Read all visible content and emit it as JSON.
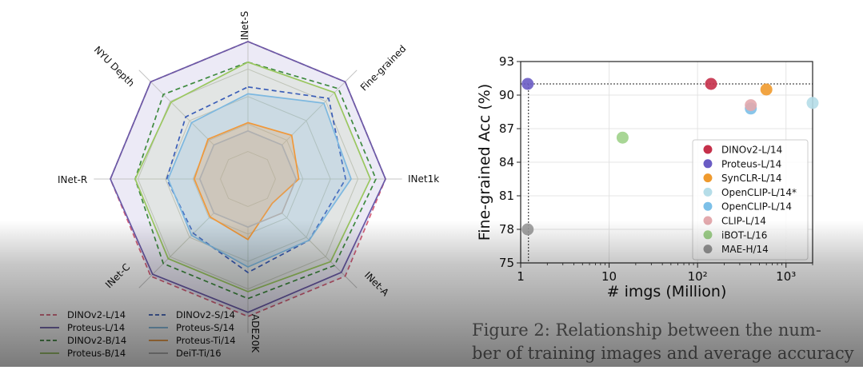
{
  "caption": "Figure 2: Relationship between the number of training images and average accuracy",
  "caption_line1": "Figure 2:  Relationship between the num-",
  "caption_line2": "ber of training images and average accuracy",
  "chart_data": [
    {
      "type": "radar",
      "axes": [
        "INet-S",
        "Fine-grained",
        "INet1k",
        "INet-A",
        "ADE20K",
        "INet-C",
        "INet-R",
        "NYU Depth"
      ],
      "radial_range": [
        0,
        1
      ],
      "grid": true,
      "legend_position": "bottom-left",
      "series": [
        {
          "name": "DINOv2-L/14",
          "color": "#d6617a",
          "style": "dashed",
          "values": [
            1.0,
            1.0,
            1.0,
            1.0,
            1.0,
            1.0,
            1.0,
            1.0
          ]
        },
        {
          "name": "Proteus-L/14",
          "color": "#6a5aa8",
          "style": "solid",
          "values": [
            1.0,
            1.0,
            1.0,
            0.96,
            0.97,
            0.98,
            1.0,
            1.0
          ]
        },
        {
          "name": "DINOv2-B/14",
          "color": "#3f8a3f",
          "style": "dashed",
          "values": [
            0.85,
            0.93,
            0.93,
            0.89,
            0.87,
            0.87,
            0.82,
            0.87
          ]
        },
        {
          "name": "Proteus-B/14",
          "color": "#9ac760",
          "style": "solid",
          "values": [
            0.85,
            0.89,
            0.89,
            0.85,
            0.82,
            0.82,
            0.82,
            0.79
          ]
        },
        {
          "name": "DINOv2-S/14",
          "color": "#3b5eb8",
          "style": "dashed",
          "values": [
            0.67,
            0.83,
            0.71,
            0.63,
            0.68,
            0.56,
            0.59,
            0.64
          ]
        },
        {
          "name": "Proteus-S/14",
          "color": "#7db8e0",
          "style": "solid",
          "values": [
            0.62,
            0.78,
            0.75,
            0.63,
            0.64,
            0.58,
            0.58,
            0.58
          ]
        },
        {
          "name": "Proteus-Ti/14",
          "color": "#f0983a",
          "style": "solid",
          "values": [
            0.41,
            0.45,
            0.37,
            0.25,
            0.44,
            0.39,
            0.39,
            0.41
          ]
        },
        {
          "name": "DeiT-Ti/16",
          "color": "#b0b0b0",
          "style": "solid",
          "values": [
            0.35,
            0.35,
            0.35,
            0.35,
            0.35,
            0.35,
            0.35,
            0.35
          ]
        }
      ]
    },
    {
      "type": "scatter",
      "xscale": "log",
      "xlabel": "# imgs (Million)",
      "ylabel": "Fine-grained Acc (%)",
      "xlim": [
        1,
        2000
      ],
      "ylim": [
        75,
        93
      ],
      "xticks": [
        "1",
        "10",
        "10²",
        "10³"
      ],
      "yticks": [
        75,
        78,
        81,
        84,
        87,
        90,
        93
      ],
      "grid": true,
      "legend_position": "lower-right",
      "reference_y": 91,
      "reference_x": 1.2,
      "series": [
        {
          "name": "DINOv2-L/14",
          "color": "#c5304a",
          "points": [
            [
              142,
              91.0
            ]
          ]
        },
        {
          "name": "Proteus-L/14",
          "color": "#6a5cc4",
          "points": [
            [
              1.2,
              91.0
            ]
          ]
        },
        {
          "name": "SynCLR-L/14",
          "color": "#ef9a2e",
          "points": [
            [
              600,
              90.5
            ]
          ]
        },
        {
          "name": "OpenCLIP-L/14*",
          "color": "#b5dde8",
          "points": [
            [
              2000,
              89.3
            ]
          ]
        },
        {
          "name": "OpenCLIP-L/14",
          "color": "#7cc0e8",
          "points": [
            [
              400,
              88.8
            ]
          ]
        },
        {
          "name": "CLIP-L/14",
          "color": "#e3a9ad",
          "points": [
            [
              400,
              89.1
            ]
          ]
        },
        {
          "name": "iBOT-L/16",
          "color": "#9fd18a",
          "points": [
            [
              14.2,
              86.2
            ]
          ]
        },
        {
          "name": "MAE-H/14",
          "color": "#9a9a9a",
          "points": [
            [
              1.2,
              78.0
            ]
          ]
        }
      ]
    }
  ]
}
